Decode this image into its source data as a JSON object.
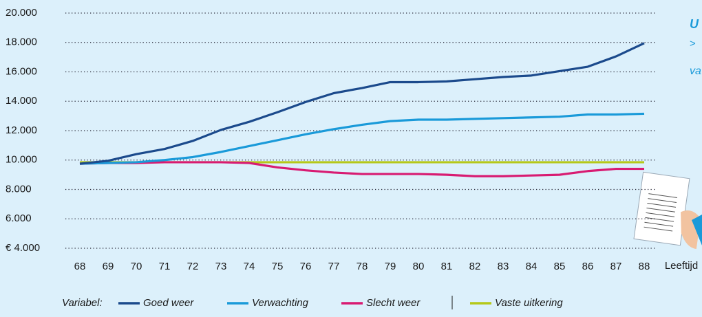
{
  "chart_data": {
    "type": "line",
    "x_label": "Leeftijd",
    "legend_title": "Variabel:",
    "categories": [
      "68",
      "69",
      "70",
      "71",
      "72",
      "73",
      "74",
      "75",
      "76",
      "77",
      "78",
      "79",
      "80",
      "81",
      "82",
      "83",
      "84",
      "85",
      "86",
      "87",
      "88"
    ],
    "series": [
      {
        "name": "Goed weer",
        "color": "#1b4a8c",
        "values": [
          9750,
          9950,
          10400,
          10750,
          11300,
          12050,
          12600,
          13250,
          13950,
          14550,
          14900,
          15300,
          15300,
          15350,
          15500,
          15650,
          15750,
          16050,
          16350,
          17050,
          17950
        ]
      },
      {
        "name": "Verwachting",
        "color": "#1a9ad9",
        "values": [
          9750,
          9800,
          9850,
          10000,
          10200,
          10550,
          10950,
          11350,
          11750,
          12100,
          12400,
          12650,
          12750,
          12750,
          12800,
          12850,
          12900,
          12950,
          13100,
          13100,
          13150
        ]
      },
      {
        "name": "Slecht weer",
        "color": "#d81b72",
        "values": [
          9750,
          9800,
          9800,
          9850,
          9850,
          9850,
          9800,
          9500,
          9300,
          9150,
          9050,
          9050,
          9050,
          9000,
          8900,
          8900,
          8950,
          9000,
          9250,
          9400,
          9400
        ]
      },
      {
        "name": "Vaste uitkering",
        "color": "#b5c81a",
        "values": [
          9850,
          9850,
          9850,
          9850,
          9850,
          9850,
          9850,
          9850,
          9850,
          9850,
          9850,
          9850,
          9850,
          9850,
          9850,
          9850,
          9850,
          9850,
          9850,
          9850,
          9850
        ]
      }
    ],
    "ylim": [
      4000,
      20000
    ],
    "yticks": [
      {
        "value": 4000,
        "label": "€ 4.000"
      },
      {
        "value": 6000,
        "label": "6.000"
      },
      {
        "value": 8000,
        "label": "8.000"
      },
      {
        "value": 10000,
        "label": "10.000"
      },
      {
        "value": 12000,
        "label": "12.000"
      },
      {
        "value": 14000,
        "label": "14.000"
      },
      {
        "value": 16000,
        "label": "16.000"
      },
      {
        "value": 18000,
        "label": "18.000"
      },
      {
        "value": 20000,
        "label": "20.000"
      }
    ],
    "grid": true,
    "annotations": [
      "U",
      ">",
      "va"
    ]
  }
}
